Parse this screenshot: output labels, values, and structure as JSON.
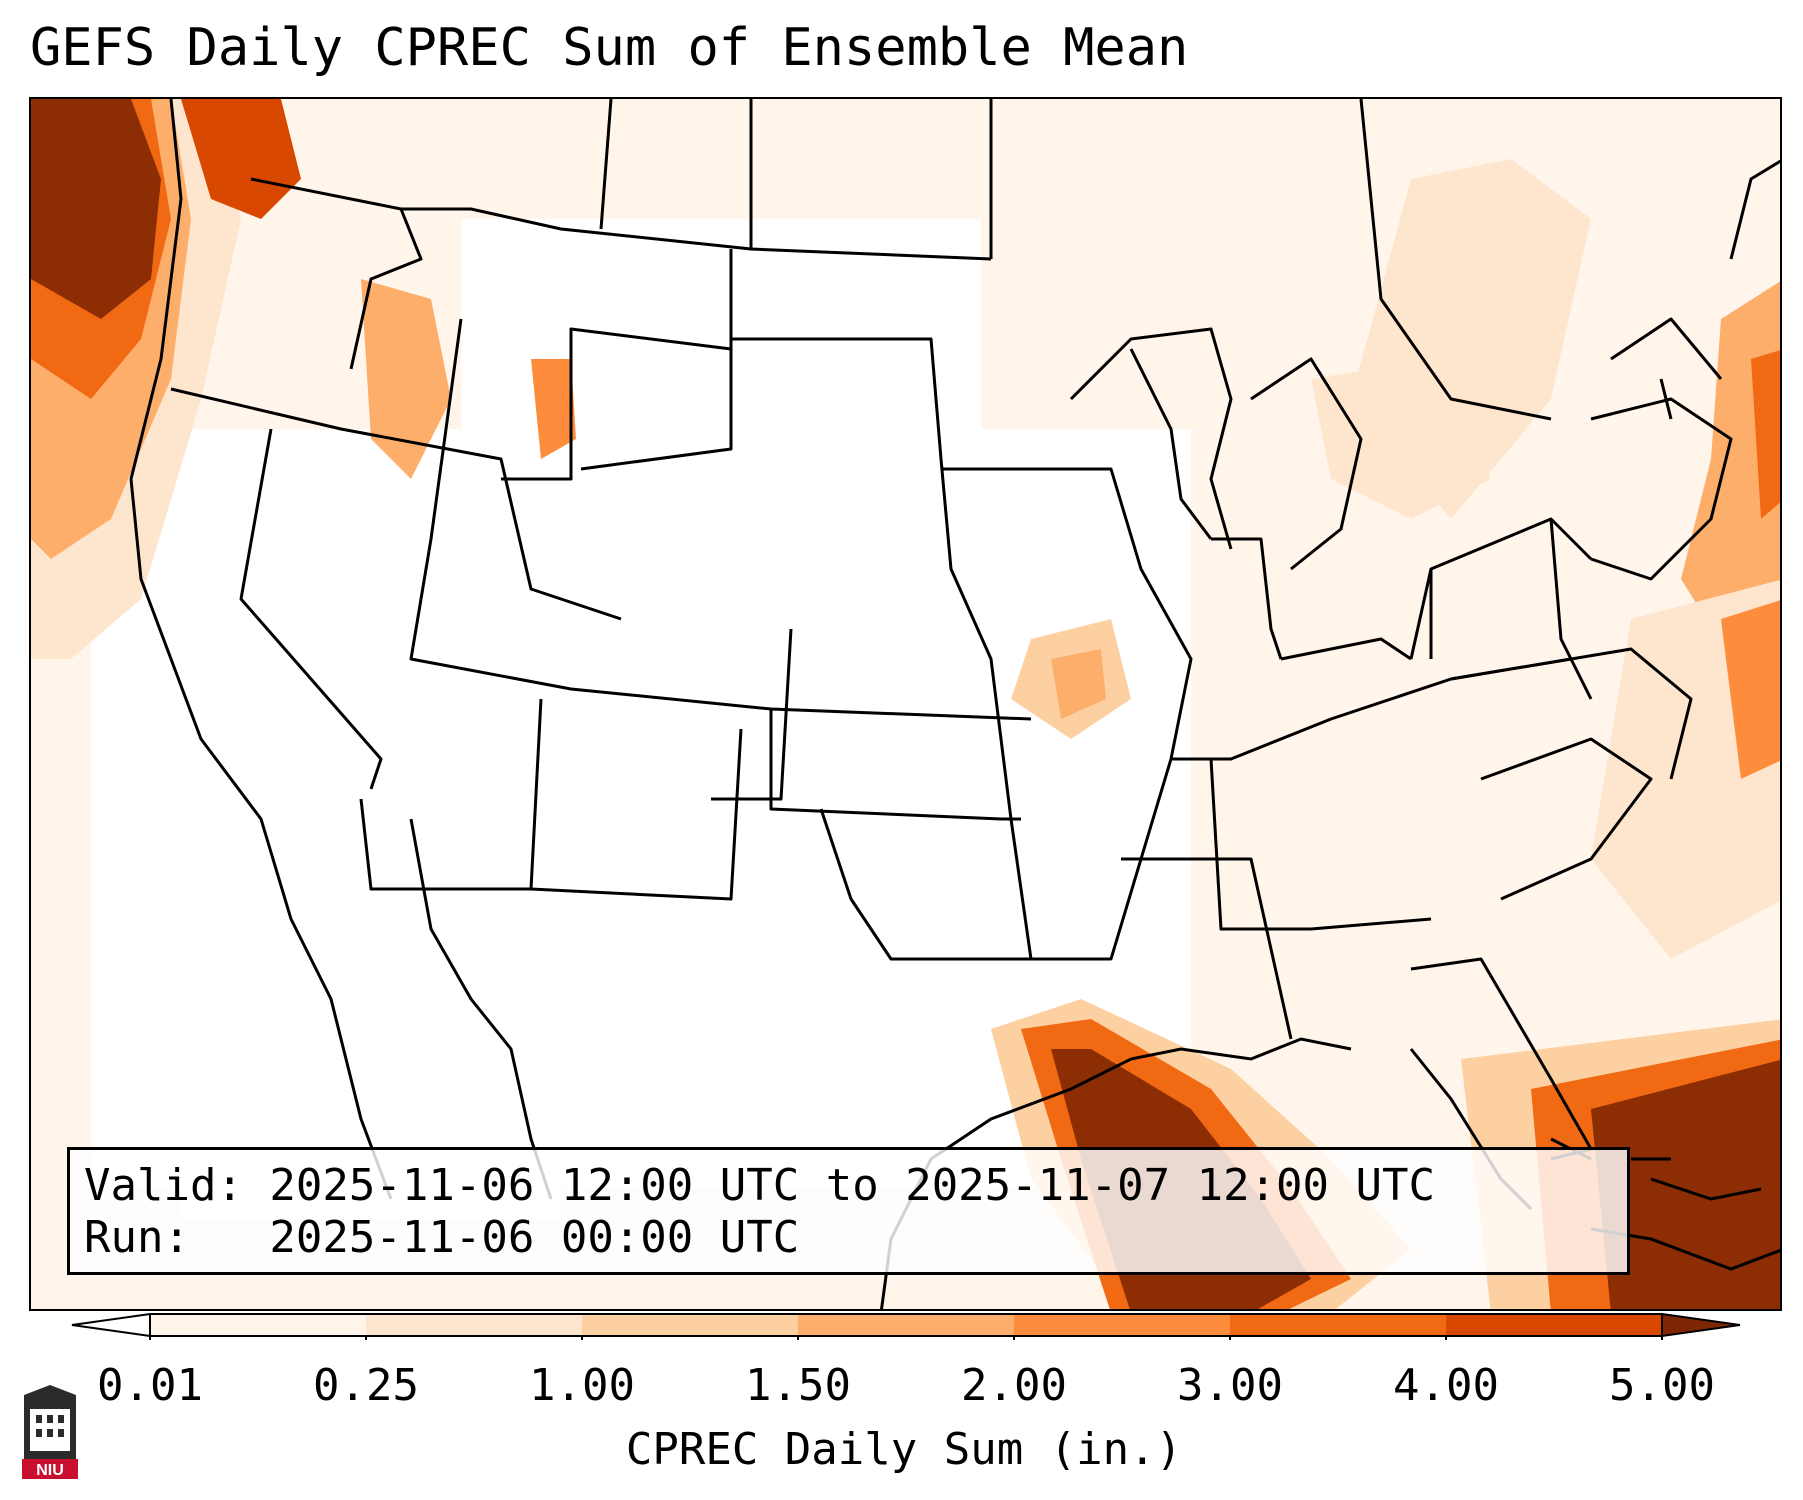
{
  "title": "GEFS Daily CPREC Sum of Ensemble Mean",
  "valid_line": "Valid: 2025-11-06 12:00 UTC to 2025-11-07 12:00 UTC",
  "run_line": "Run:   2025-11-06 00:00 UTC",
  "colorbar": {
    "label": "CPREC Daily Sum (in.)",
    "ticks": [
      "0.01",
      "0.25",
      "1.00",
      "1.50",
      "2.00",
      "3.00",
      "4.00",
      "5.00"
    ],
    "colors": [
      "#fff5eb",
      "#fee6ce",
      "#fdd0a2",
      "#fdae6b",
      "#fd8d3c",
      "#f16913",
      "#d94801",
      "#8c2d04"
    ],
    "under_color": "#ffffff",
    "over_color": "#7f2704"
  },
  "logo": {
    "text": "NIU",
    "icon": "niu-logo-icon"
  }
}
